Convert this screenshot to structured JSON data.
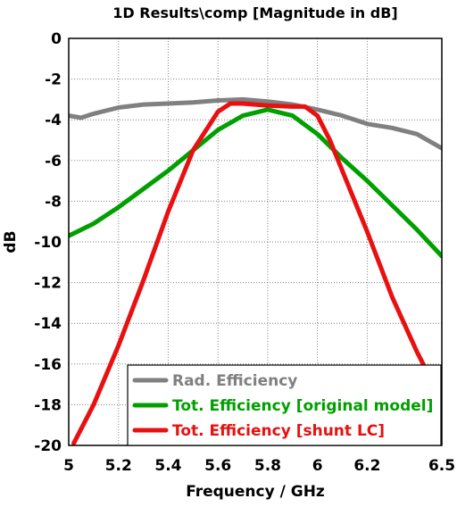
{
  "chart_data": {
    "type": "line",
    "title": "1D Results\\comp [Magnitude in dB]",
    "xlabel": "Frequency / GHz",
    "ylabel": "dB",
    "xlim": [
      5,
      6.5
    ],
    "ylim": [
      -20,
      0
    ],
    "xticks": [
      "5",
      "5.2",
      "5.4",
      "5.6",
      "5.8",
      "6",
      "6.2",
      "6.5"
    ],
    "xtick_values": [
      5,
      5.2,
      5.4,
      5.6,
      5.8,
      6,
      6.2,
      6.5
    ],
    "yticks": [
      "0",
      "-2",
      "-4",
      "-6",
      "-8",
      "-10",
      "-12",
      "-14",
      "-16",
      "-18",
      "-20"
    ],
    "ytick_values": [
      0,
      -2,
      -4,
      -6,
      -8,
      -10,
      -12,
      -14,
      -16,
      -18,
      -20
    ],
    "grid": true,
    "legend_position": "bottom-right",
    "series": [
      {
        "name": "Rad. Efficiency",
        "color": "#808080",
        "x": [
          5.0,
          5.05,
          5.1,
          5.2,
          5.3,
          5.4,
          5.5,
          5.6,
          5.7,
          5.8,
          5.9,
          6.0,
          6.1,
          6.2,
          6.3,
          6.4,
          6.5
        ],
        "y": [
          -3.8,
          -3.9,
          -3.7,
          -3.4,
          -3.25,
          -3.2,
          -3.15,
          -3.05,
          -3.0,
          -3.1,
          -3.25,
          -3.5,
          -3.8,
          -4.2,
          -4.4,
          -4.7,
          -5.4
        ]
      },
      {
        "name": "Tot. Efficiency [original model]",
        "color": "#00a000",
        "x": [
          5.0,
          5.1,
          5.2,
          5.3,
          5.4,
          5.5,
          5.6,
          5.7,
          5.8,
          5.9,
          6.0,
          6.1,
          6.2,
          6.3,
          6.4,
          6.5
        ],
        "y": [
          -9.7,
          -9.1,
          -8.3,
          -7.4,
          -6.5,
          -5.5,
          -4.5,
          -3.8,
          -3.5,
          -3.8,
          -4.7,
          -5.9,
          -7.0,
          -8.2,
          -9.4,
          -10.7
        ]
      },
      {
        "name": "Tot. Efficiency [shunt LC]",
        "color": "#e81010",
        "x": [
          5.02,
          5.1,
          5.2,
          5.3,
          5.4,
          5.5,
          5.6,
          5.65,
          5.7,
          5.8,
          5.9,
          5.95,
          6.0,
          6.05,
          6.1,
          6.2,
          6.3,
          6.4,
          6.45
        ],
        "y": [
          -19.9,
          -18.0,
          -15.1,
          -11.9,
          -8.5,
          -5.5,
          -3.6,
          -3.2,
          -3.2,
          -3.3,
          -3.35,
          -3.35,
          -3.8,
          -5.0,
          -6.5,
          -9.5,
          -12.7,
          -15.4,
          -16.6
        ]
      }
    ]
  }
}
